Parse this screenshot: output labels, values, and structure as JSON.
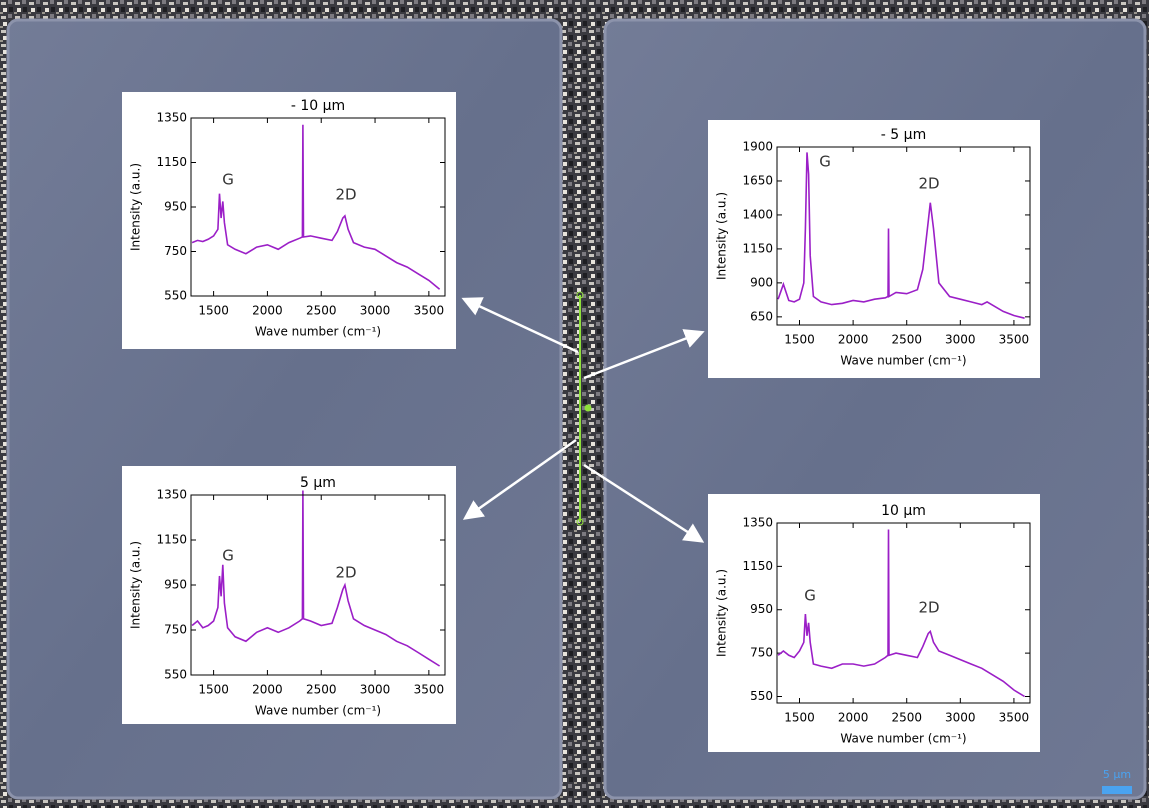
{
  "chart_data": [
    {
      "type": "line",
      "title": "- 10 µm",
      "xlabel": "Wave number (cm⁻¹)",
      "ylabel": "Intensity (a.u.)",
      "color": "#9b1fc7",
      "x": [
        1300,
        1350,
        1400,
        1450,
        1500,
        1540,
        1555,
        1570,
        1585,
        1600,
        1630,
        1700,
        1800,
        1900,
        2000,
        2100,
        2200,
        2300,
        2325,
        2330,
        2335,
        2400,
        2500,
        2600,
        2650,
        2700,
        2720,
        2750,
        2800,
        2900,
        3000,
        3100,
        3200,
        3300,
        3400,
        3500,
        3600
      ],
      "values": [
        790,
        800,
        795,
        805,
        820,
        850,
        1010,
        900,
        975,
        880,
        780,
        760,
        740,
        770,
        780,
        760,
        790,
        810,
        815,
        1320,
        815,
        820,
        810,
        800,
        840,
        900,
        910,
        850,
        790,
        770,
        760,
        730,
        700,
        680,
        650,
        620,
        580
      ],
      "xlim": [
        1290,
        3650
      ],
      "xticks": [
        1500,
        2000,
        2500,
        3000,
        3500
      ],
      "ylim": [
        550,
        1350
      ],
      "yticks": [
        550,
        750,
        950,
        1150,
        1350
      ],
      "annotations": [
        "G",
        "2D"
      ]
    },
    {
      "type": "line",
      "title": "- 5 µm",
      "xlabel": "Wave number (cm⁻¹)",
      "ylabel": "Intensity (a.u.)",
      "color": "#9b1fc7",
      "x": [
        1300,
        1350,
        1400,
        1450,
        1500,
        1540,
        1555,
        1570,
        1585,
        1600,
        1630,
        1700,
        1800,
        1900,
        2000,
        2100,
        2200,
        2300,
        2325,
        2330,
        2335,
        2400,
        2500,
        2600,
        2650,
        2700,
        2720,
        2750,
        2800,
        2900,
        3000,
        3100,
        3200,
        3250,
        3400,
        3500,
        3600
      ],
      "values": [
        780,
        890,
        770,
        760,
        780,
        900,
        1300,
        1860,
        1700,
        1100,
        800,
        760,
        740,
        750,
        770,
        760,
        780,
        790,
        800,
        1300,
        800,
        830,
        820,
        850,
        1000,
        1350,
        1490,
        1300,
        900,
        800,
        780,
        760,
        740,
        760,
        690,
        660,
        640
      ],
      "xlim": [
        1290,
        3650
      ],
      "xticks": [
        1500,
        2000,
        2500,
        3000,
        3500
      ],
      "ylim": [
        590,
        1900
      ],
      "yticks": [
        650,
        900,
        1150,
        1400,
        1650,
        1900
      ],
      "annotations": [
        "G",
        "2D"
      ]
    },
    {
      "type": "line",
      "title": "5 µm",
      "xlabel": "Wave number (cm⁻¹)",
      "ylabel": "Intensity (a.u.)",
      "color": "#9b1fc7",
      "x": [
        1300,
        1350,
        1400,
        1450,
        1500,
        1540,
        1555,
        1570,
        1585,
        1600,
        1630,
        1700,
        1800,
        1900,
        2000,
        2100,
        2200,
        2300,
        2325,
        2330,
        2335,
        2400,
        2500,
        2600,
        2650,
        2700,
        2720,
        2750,
        2800,
        2900,
        3000,
        3100,
        3200,
        3300,
        3400,
        3500,
        3600
      ],
      "values": [
        770,
        790,
        760,
        770,
        790,
        850,
        990,
        900,
        1040,
        870,
        760,
        720,
        700,
        740,
        760,
        740,
        760,
        790,
        800,
        1370,
        800,
        790,
        770,
        780,
        850,
        930,
        950,
        880,
        800,
        770,
        750,
        730,
        700,
        680,
        650,
        620,
        590
      ],
      "xlim": [
        1290,
        3650
      ],
      "xticks": [
        1500,
        2000,
        2500,
        3000,
        3500
      ],
      "ylim": [
        550,
        1350
      ],
      "yticks": [
        550,
        750,
        950,
        1150,
        1350
      ],
      "annotations": [
        "G",
        "2D"
      ]
    },
    {
      "type": "line",
      "title": "10 µm",
      "xlabel": "Wave number (cm⁻¹)",
      "ylabel": "Intensity (a.u.)",
      "color": "#9b1fc7",
      "x": [
        1300,
        1350,
        1400,
        1450,
        1500,
        1540,
        1555,
        1570,
        1585,
        1600,
        1630,
        1700,
        1800,
        1900,
        2000,
        2100,
        2200,
        2300,
        2325,
        2330,
        2335,
        2400,
        2500,
        2600,
        2650,
        2700,
        2720,
        2750,
        2800,
        2900,
        3000,
        3100,
        3200,
        3300,
        3400,
        3500,
        3600
      ],
      "values": [
        740,
        760,
        740,
        730,
        760,
        800,
        930,
        830,
        890,
        800,
        700,
        690,
        680,
        700,
        700,
        690,
        700,
        730,
        740,
        1320,
        740,
        750,
        740,
        730,
        780,
        840,
        850,
        800,
        760,
        740,
        720,
        700,
        680,
        650,
        620,
        580,
        550
      ],
      "xlim": [
        1290,
        3650
      ],
      "xticks": [
        1500,
        2000,
        2500,
        3000,
        3500
      ],
      "ylim": [
        520,
        1350
      ],
      "yticks": [
        550,
        750,
        950,
        1150,
        1350
      ],
      "annotations": [
        "G",
        "2D"
      ]
    }
  ],
  "scale_bar": "5 µm"
}
